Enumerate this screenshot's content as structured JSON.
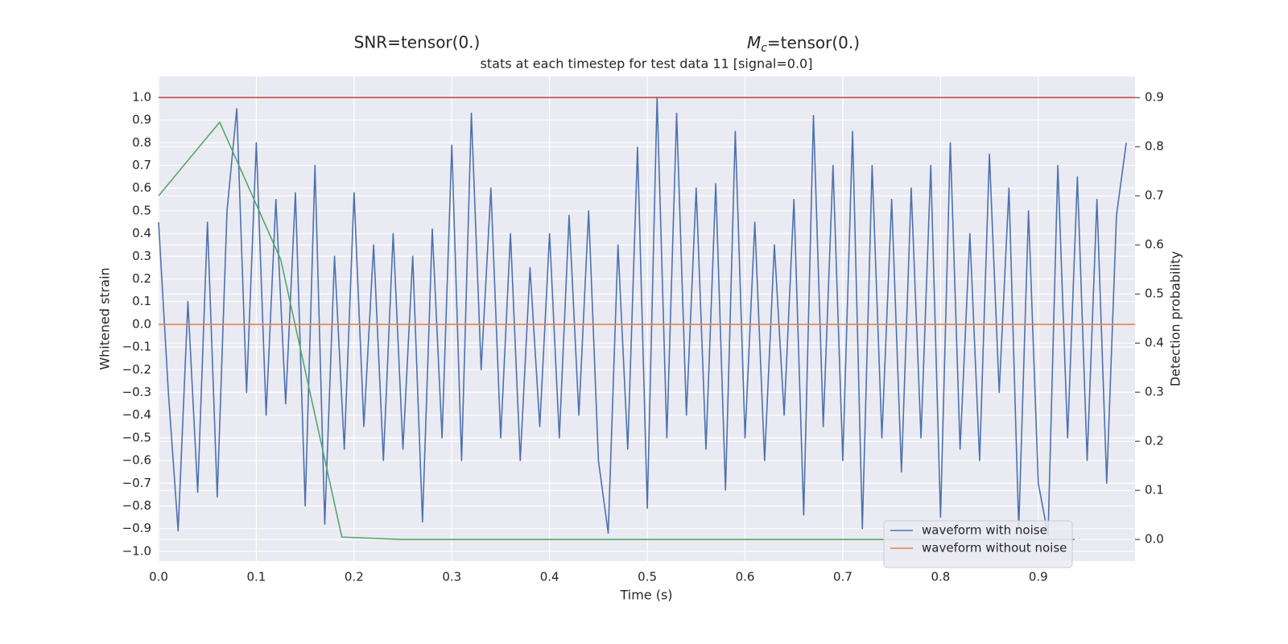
{
  "chart_data": {
    "type": "line",
    "title": "stats at each timestep for test data 11 [signal=0.0]",
    "snr_title": "SNR=tensor(0.)",
    "mc_title": {
      "symbol": "M",
      "subscript": "c",
      "text": "=tensor(0.)"
    },
    "xlabel": "Time (s)",
    "ylabel": "Whitened strain",
    "y2label": "Detection probability",
    "xlim": [
      0,
      0.999
    ],
    "ylim": [
      -1.043,
      1.092
    ],
    "y2lim": [
      -0.044,
      0.943
    ],
    "xticks": [
      {
        "value": 0.0,
        "label": "0.0"
      },
      {
        "value": 0.1,
        "label": "0.1"
      },
      {
        "value": 0.2,
        "label": "0.2"
      },
      {
        "value": 0.3,
        "label": "0.3"
      },
      {
        "value": 0.4,
        "label": "0.4"
      },
      {
        "value": 0.5,
        "label": "0.5"
      },
      {
        "value": 0.6,
        "label": "0.6"
      },
      {
        "value": 0.7,
        "label": "0.7"
      },
      {
        "value": 0.8,
        "label": "0.8"
      },
      {
        "value": 0.9,
        "label": "0.9"
      }
    ],
    "yticks": [
      {
        "value": -1.0,
        "label": "−1.0"
      },
      {
        "value": -0.9,
        "label": "−0.9"
      },
      {
        "value": -0.8,
        "label": "−0.8"
      },
      {
        "value": -0.7,
        "label": "−0.7"
      },
      {
        "value": -0.6,
        "label": "−0.6"
      },
      {
        "value": -0.5,
        "label": "−0.5"
      },
      {
        "value": -0.4,
        "label": "−0.4"
      },
      {
        "value": -0.3,
        "label": "−0.3"
      },
      {
        "value": -0.2,
        "label": "−0.2"
      },
      {
        "value": -0.1,
        "label": "−0.1"
      },
      {
        "value": 0.0,
        "label": "0.0"
      },
      {
        "value": 0.1,
        "label": "0.1"
      },
      {
        "value": 0.2,
        "label": "0.2"
      },
      {
        "value": 0.3,
        "label": "0.3"
      },
      {
        "value": 0.4,
        "label": "0.4"
      },
      {
        "value": 0.5,
        "label": "0.5"
      },
      {
        "value": 0.6,
        "label": "0.6"
      },
      {
        "value": 0.7,
        "label": "0.7"
      },
      {
        "value": 0.8,
        "label": "0.8"
      },
      {
        "value": 0.9,
        "label": "0.9"
      },
      {
        "value": 1.0,
        "label": "1.0"
      }
    ],
    "y2ticks": [
      {
        "value": 0.0,
        "label": "0.0"
      },
      {
        "value": 0.1,
        "label": "0.1"
      },
      {
        "value": 0.2,
        "label": "0.2"
      },
      {
        "value": 0.3,
        "label": "0.3"
      },
      {
        "value": 0.4,
        "label": "0.4"
      },
      {
        "value": 0.5,
        "label": "0.5"
      },
      {
        "value": 0.6,
        "label": "0.6"
      },
      {
        "value": 0.7,
        "label": "0.7"
      },
      {
        "value": 0.8,
        "label": "0.8"
      },
      {
        "value": 0.9,
        "label": "0.9"
      }
    ],
    "grid": true,
    "legend": "lower right",
    "hlines": [
      {
        "value": 0.9,
        "axis": "y2",
        "color": "#c44e52"
      }
    ],
    "series": [
      {
        "name": "waveform with noise",
        "color": "#4c72b0",
        "x": [
          0,
          0.01,
          0.02,
          0.03,
          0.04,
          0.05,
          0.06,
          0.07,
          0.08,
          0.09,
          0.1,
          0.11,
          0.12,
          0.13,
          0.14,
          0.15,
          0.16,
          0.17,
          0.18,
          0.19,
          0.2,
          0.21,
          0.22,
          0.23,
          0.24,
          0.25,
          0.26,
          0.27,
          0.28,
          0.29,
          0.3,
          0.31,
          0.32,
          0.33,
          0.34,
          0.35,
          0.36,
          0.37,
          0.38,
          0.39,
          0.4,
          0.41,
          0.42,
          0.43,
          0.44,
          0.45,
          0.46,
          0.47,
          0.48,
          0.49,
          0.5,
          0.51,
          0.52,
          0.53,
          0.54,
          0.55,
          0.56,
          0.57,
          0.58,
          0.59,
          0.6,
          0.61,
          0.62,
          0.63,
          0.64,
          0.65,
          0.66,
          0.67,
          0.68,
          0.69,
          0.7,
          0.71,
          0.72,
          0.73,
          0.74,
          0.75,
          0.76,
          0.77,
          0.78,
          0.79,
          0.8,
          0.81,
          0.82,
          0.83,
          0.84,
          0.85,
          0.86,
          0.87,
          0.88,
          0.89,
          0.9,
          0.91,
          0.92,
          0.93,
          0.94,
          0.95,
          0.96,
          0.97,
          0.98,
          0.99
        ],
        "values": [
          0.45,
          -0.3,
          -0.91,
          0.1,
          -0.74,
          0.45,
          -0.76,
          0.5,
          0.95,
          -0.3,
          0.8,
          -0.4,
          0.55,
          -0.35,
          0.58,
          -0.8,
          0.7,
          -0.88,
          0.3,
          -0.55,
          0.58,
          -0.45,
          0.35,
          -0.6,
          0.4,
          -0.55,
          0.3,
          -0.87,
          0.42,
          -0.5,
          0.79,
          -0.6,
          0.93,
          -0.2,
          0.6,
          -0.5,
          0.4,
          -0.6,
          0.25,
          -0.45,
          0.4,
          -0.5,
          0.48,
          -0.4,
          0.5,
          -0.6,
          -0.92,
          0.35,
          -0.55,
          0.78,
          -0.81,
          1.0,
          -0.5,
          0.93,
          -0.4,
          0.6,
          -0.55,
          0.62,
          -0.73,
          0.85,
          -0.5,
          0.45,
          -0.6,
          0.35,
          -0.4,
          0.55,
          -0.84,
          0.92,
          -0.45,
          0.7,
          -0.6,
          0.85,
          -0.9,
          0.7,
          -0.5,
          0.55,
          -0.65,
          0.6,
          -0.5,
          0.7,
          -0.85,
          0.8,
          -0.55,
          0.4,
          -0.6,
          0.75,
          -0.3,
          0.6,
          -0.9,
          0.5,
          -0.7,
          -0.93,
          0.7,
          -0.5,
          0.65,
          -0.6,
          0.55,
          -0.7,
          0.48,
          0.8
        ]
      },
      {
        "name": "waveform without noise",
        "color": "#dd8452",
        "x": [
          0,
          0.999
        ],
        "values": [
          0,
          0
        ]
      },
      {
        "color": "#55a868",
        "axis": "y2",
        "x": [
          0,
          0.0625,
          0.125,
          0.1875,
          0.25,
          0.3125,
          0.375,
          0.4375,
          0.5,
          0.5625,
          0.625,
          0.6875,
          0.75,
          0.8125,
          0.875,
          0.9375
        ],
        "values": [
          0.7,
          0.85,
          0.57,
          0.005,
          0,
          0,
          0,
          0,
          0,
          0,
          0,
          0,
          0,
          0,
          0,
          0
        ]
      }
    ]
  }
}
